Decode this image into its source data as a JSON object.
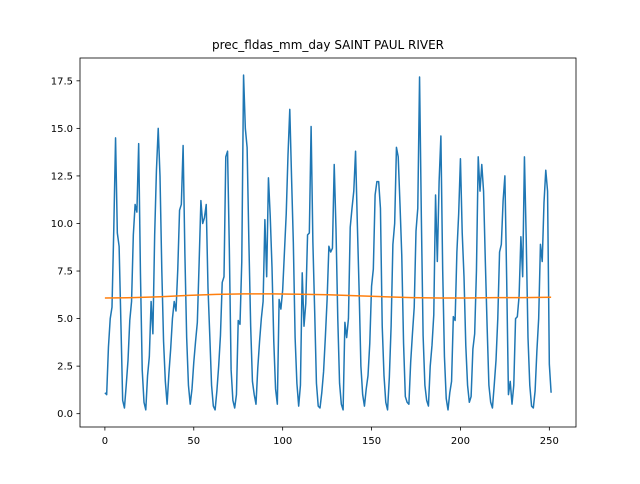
{
  "chart_data": {
    "type": "line",
    "title": "prec_fldas_mm_day SAINT PAUL RIVER",
    "xlabel": "",
    "ylabel": "",
    "xlim": [
      -14,
      265
    ],
    "ylim": [
      -0.7,
      18.7
    ],
    "xticks": [
      0,
      50,
      100,
      150,
      200,
      250
    ],
    "xtick_labels": [
      "0",
      "50",
      "100",
      "150",
      "200",
      "250"
    ],
    "yticks": [
      0.0,
      2.5,
      5.0,
      7.5,
      10.0,
      12.5,
      15.0,
      17.5
    ],
    "ytick_labels": [
      "0.0",
      "2.5",
      "5.0",
      "7.5",
      "10.0",
      "12.5",
      "15.0",
      "17.5"
    ],
    "grid": false,
    "series": [
      {
        "color": "#1f77b4",
        "values": [
          1.1,
          1.0,
          3.5,
          5.0,
          5.6,
          9.7,
          14.5,
          9.5,
          8.8,
          4.8,
          0.7,
          0.3,
          1.5,
          2.8,
          4.9,
          5.9,
          9.4,
          11.0,
          10.6,
          14.2,
          7.4,
          2.3,
          0.6,
          0.2,
          2.0,
          3.0,
          5.9,
          4.2,
          9.4,
          12.8,
          15.0,
          12.5,
          7.6,
          3.8,
          1.7,
          0.5,
          2.1,
          3.4,
          5.0,
          5.9,
          5.4,
          7.6,
          10.7,
          11.0,
          14.1,
          8.4,
          4.0,
          1.5,
          0.5,
          1.3,
          2.7,
          3.8,
          4.8,
          7.9,
          11.2,
          10.0,
          10.3,
          11.0,
          6.6,
          4.1,
          1.5,
          0.4,
          0.2,
          1.2,
          2.5,
          4.1,
          6.9,
          7.2,
          13.5,
          13.8,
          8.7,
          2.3,
          0.7,
          0.3,
          1.0,
          4.9,
          4.7,
          8.0,
          17.8,
          15.0,
          14.0,
          9.0,
          4.6,
          1.7,
          1.0,
          0.5,
          2.4,
          3.8,
          5.0,
          5.9,
          10.2,
          7.2,
          12.4,
          10.4,
          7.7,
          3.8,
          1.3,
          0.5,
          6.0,
          5.5,
          6.5,
          8.5,
          10.5,
          13.6,
          16.0,
          12.4,
          9.0,
          4.0,
          1.6,
          0.4,
          1.5,
          7.4,
          4.6,
          5.8,
          9.4,
          9.5,
          15.1,
          9.0,
          5.4,
          1.6,
          0.4,
          0.3,
          1.1,
          2.2,
          4.0,
          6.0,
          8.8,
          8.5,
          8.7,
          13.1,
          9.7,
          5.0,
          1.6,
          0.5,
          0.2,
          4.8,
          4.0,
          5.0,
          9.8,
          10.8,
          11.7,
          13.8,
          10.0,
          6.5,
          2.5,
          1.0,
          0.4,
          1.3,
          2.0,
          3.7,
          6.7,
          7.6,
          11.5,
          12.2,
          12.2,
          10.8,
          4.6,
          2.0,
          0.6,
          0.2,
          1.9,
          4.6,
          8.9,
          10.0,
          14.0,
          13.5,
          11.0,
          8.3,
          3.7,
          0.9,
          0.6,
          0.5,
          2.7,
          4.2,
          5.6,
          9.6,
          10.8,
          17.7,
          10.4,
          4.1,
          1.5,
          0.7,
          0.4,
          2.5,
          3.6,
          5.2,
          11.5,
          8.0,
          12.2,
          14.6,
          7.6,
          3.0,
          0.8,
          0.2,
          1.1,
          1.7,
          5.1,
          4.9,
          8.5,
          10.5,
          13.4,
          9.5,
          7.2,
          3.6,
          1.5,
          0.6,
          0.9,
          3.4,
          4.2,
          7.5,
          13.5,
          11.7,
          13.1,
          11.7,
          8.0,
          4.6,
          1.5,
          0.6,
          0.3,
          1.5,
          2.8,
          5.0,
          8.5,
          8.9,
          11.2,
          12.5,
          7.1,
          1.0,
          1.7,
          0.5,
          1.5,
          5.0,
          5.1,
          6.2,
          9.3,
          7.2,
          13.5,
          9.2,
          4.0,
          1.5,
          0.4,
          0.3,
          1.2,
          3.3,
          5.0,
          8.9,
          8.0,
          11.1,
          12.8,
          11.7,
          2.6,
          1.1
        ]
      },
      {
        "color": "#ff7f0e",
        "values": [
          6.08,
          6.1,
          6.15,
          6.22,
          6.27,
          6.3,
          6.3,
          6.28,
          6.25,
          6.2,
          6.15,
          6.1,
          6.08,
          6.08,
          6.1,
          6.1,
          6.12
        ]
      }
    ]
  }
}
